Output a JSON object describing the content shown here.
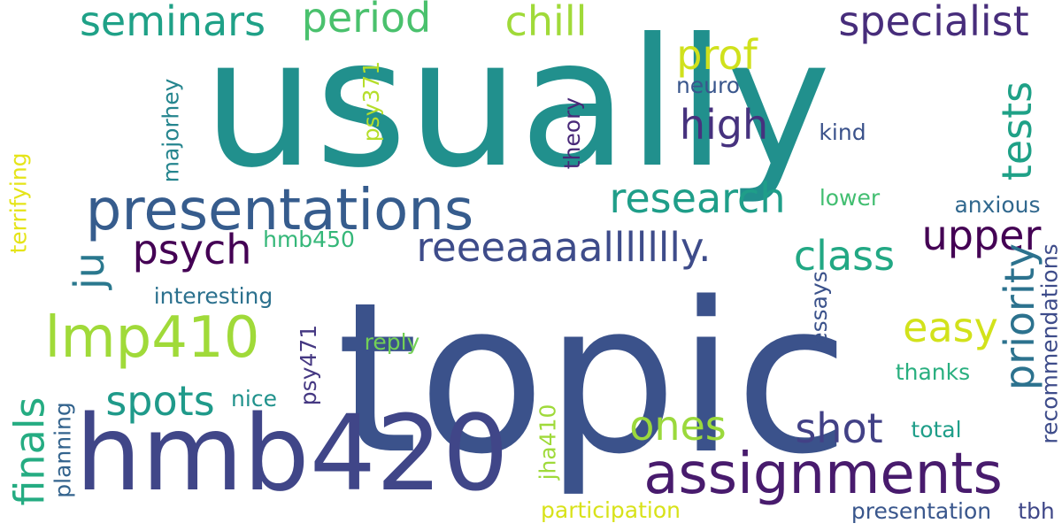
{
  "background_color": "#ffffff",
  "words": [
    {
      "text": "usually",
      "color": "#21908d"
    },
    {
      "text": "topic",
      "color": "#3b528b"
    },
    {
      "text": "hmb420",
      "color": "#404688"
    },
    {
      "text": "presentations",
      "color": "#365c8d"
    },
    {
      "text": "assignments",
      "color": "#481b6d"
    },
    {
      "text": "reeeaaaallllllly.",
      "color": "#3e4c8a"
    },
    {
      "text": "lmp410",
      "color": "#a0da39"
    },
    {
      "text": "seminars",
      "color": "#1fa187"
    },
    {
      "text": "period",
      "color": "#4ac16d"
    },
    {
      "text": "chill",
      "color": "#a0da39"
    },
    {
      "text": "specialist",
      "color": "#472d7b"
    },
    {
      "text": "prof",
      "color": "#d0e11c"
    },
    {
      "text": "high",
      "color": "#46327e"
    },
    {
      "text": "tests",
      "color": "#1fa187"
    },
    {
      "text": "research",
      "color": "#1f9e89"
    },
    {
      "text": "psych",
      "color": "#440154"
    },
    {
      "text": "upper",
      "color": "#440154"
    },
    {
      "text": "class",
      "color": "#22a884"
    },
    {
      "text": "priority",
      "color": "#2c728e"
    },
    {
      "text": "easy",
      "color": "#d2e21b"
    },
    {
      "text": "spots",
      "color": "#1f9a8a"
    },
    {
      "text": "ones",
      "color": "#9bd93c"
    },
    {
      "text": "shot",
      "color": "#424186"
    },
    {
      "text": "finals",
      "color": "#25ac82"
    },
    {
      "text": "ju",
      "color": "#2a788e"
    },
    {
      "text": "interesting",
      "color": "#2c718e"
    },
    {
      "text": "hmb450",
      "color": "#35b779"
    },
    {
      "text": "terrifying",
      "color": "#e5e419"
    },
    {
      "text": "majorhey",
      "color": "#25858e"
    },
    {
      "text": "psy371",
      "color": "#b5de2b"
    },
    {
      "text": "theory",
      "color": "#482878"
    },
    {
      "text": "neuro",
      "color": "#39568c"
    },
    {
      "text": "kind",
      "color": "#3b528b"
    },
    {
      "text": "lower",
      "color": "#42be71"
    },
    {
      "text": "anxious",
      "color": "#31688e"
    },
    {
      "text": "recommendations",
      "color": "#3e4c8a"
    },
    {
      "text": "essays",
      "color": "#3b528b"
    },
    {
      "text": "reply",
      "color": "#73d056"
    },
    {
      "text": "psy471",
      "color": "#453882"
    },
    {
      "text": "nice",
      "color": "#20928c"
    },
    {
      "text": "thanks",
      "color": "#29af7f"
    },
    {
      "text": "total",
      "color": "#1f9e89"
    },
    {
      "text": "planning",
      "color": "#33638d"
    },
    {
      "text": "jha410",
      "color": "#9fda3a"
    },
    {
      "text": "participation",
      "color": "#d8e219"
    },
    {
      "text": "presentation",
      "color": "#39568c"
    },
    {
      "text": "tbh",
      "color": "#3f4788"
    }
  ]
}
